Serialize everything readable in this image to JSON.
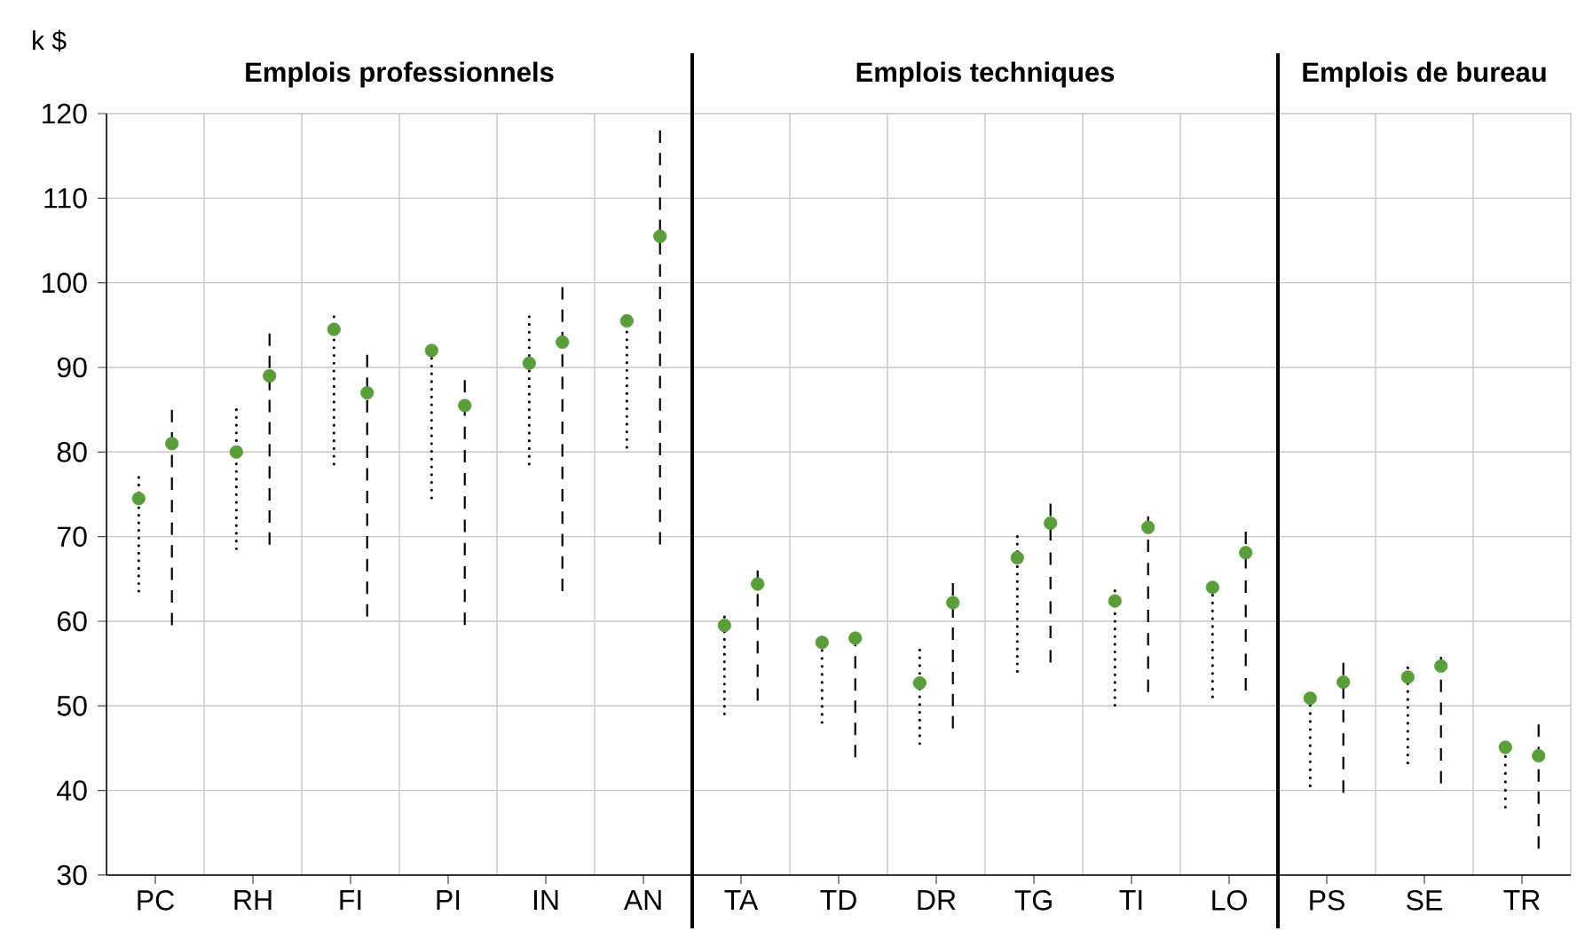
{
  "chart_data": {
    "type": "scatter",
    "ylabel": "k $",
    "categories": [
      "PC",
      "RH",
      "FI",
      "PI",
      "IN",
      "AN",
      "TA",
      "TD",
      "DR",
      "TG",
      "TI",
      "LO",
      "PS",
      "SE",
      "TR"
    ],
    "annotations": [
      "Emplois professionnels",
      "Emplois techniques",
      "Emplois de bureau"
    ],
    "ylim": [
      30,
      120
    ],
    "yticks": [
      30,
      40,
      50,
      60,
      70,
      80,
      90,
      100,
      110,
      120
    ],
    "grid": true,
    "marker": "circle",
    "series": [
      {
        "color": "#5a9e3a",
        "line_style": "dotted",
        "x": [
          "PC",
          "RH",
          "FI",
          "PI",
          "IN",
          "AN",
          "TA",
          "TD",
          "DR",
          "TG",
          "TI",
          "LO",
          "PS",
          "SE",
          "TR"
        ],
        "values": [
          74.5,
          80,
          94.5,
          92,
          90.5,
          95.5,
          59.5,
          57.5,
          52.7,
          67.5,
          62.4,
          64,
          50.9,
          53.4,
          45.1
        ],
        "errors": [
          [
            63.5,
            77
          ],
          [
            68.5,
            85
          ],
          [
            78.5,
            96
          ],
          [
            74.5,
            92
          ],
          [
            78.5,
            96
          ],
          [
            80.5,
            96
          ],
          [
            49,
            60.5
          ],
          [
            48,
            57.5
          ],
          [
            45.5,
            56.6
          ],
          [
            54,
            70
          ],
          [
            50,
            63.6
          ],
          [
            51,
            64
          ],
          [
            40.5,
            51
          ],
          [
            43.2,
            54.5
          ],
          [
            38,
            45
          ]
        ]
      },
      {
        "color": "#5a9e3a",
        "line_style": "dashed",
        "x": [
          "PC",
          "RH",
          "FI",
          "PI",
          "IN",
          "AN",
          "TA",
          "TD",
          "DR",
          "TG",
          "TI",
          "LO",
          "PS",
          "SE",
          "TR"
        ],
        "values": [
          81,
          89,
          87,
          85.5,
          93,
          105.5,
          64.4,
          58,
          62.2,
          71.6,
          71.1,
          68.1,
          52.8,
          54.7,
          44.1
        ],
        "errors": [
          [
            59.5,
            85
          ],
          [
            69,
            94
          ],
          [
            60.5,
            91.5
          ],
          [
            59.5,
            88.5
          ],
          [
            63.5,
            99.5
          ],
          [
            69,
            118
          ],
          [
            50.6,
            66
          ],
          [
            43.9,
            58.5
          ],
          [
            47.3,
            64.5
          ],
          [
            55.1,
            73.9
          ],
          [
            51.6,
            72.4
          ],
          [
            51.8,
            70.6
          ],
          [
            39.7,
            55.1
          ],
          [
            40.8,
            55.8
          ],
          [
            33.1,
            47.8
          ]
        ]
      }
    ]
  }
}
